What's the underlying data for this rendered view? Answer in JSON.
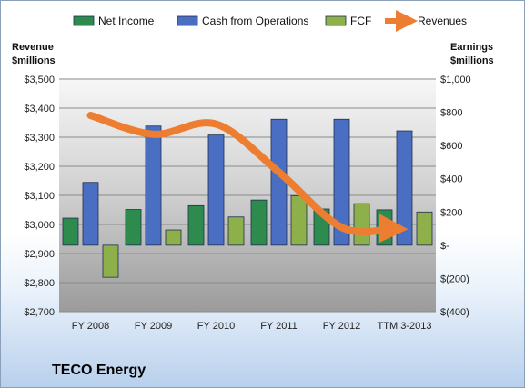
{
  "company_name": "TECO Energy",
  "chart_data": {
    "type": "bar",
    "categories": [
      "FY 2008",
      "FY 2009",
      "FY 2010",
      "FY 2011",
      "FY 2012",
      "TTM 3-2013"
    ],
    "left_axis": {
      "label_lines": [
        "Revenue",
        "$millions"
      ],
      "range": [
        2700,
        3500
      ],
      "ticks": [
        "$3,500",
        "$3,400",
        "$3,300",
        "$3,200",
        "$3,100",
        "$3,000",
        "$2,900",
        "$2,800",
        "$2,700"
      ]
    },
    "right_axis": {
      "label_lines": [
        "Earnings",
        "$millions"
      ],
      "range": [
        -400,
        1000
      ],
      "ticks": [
        "$1,000",
        "$800",
        "$600",
        "$400",
        "$200",
        "$-",
        "$(200)",
        "$(400)"
      ]
    },
    "series": [
      {
        "name": "Net Income",
        "axis": "right",
        "type": "bar",
        "color": "#2e8b4e",
        "values": [
          163,
          215,
          238,
          272,
          218,
          213
        ]
      },
      {
        "name": "Cash from Operations",
        "axis": "right",
        "type": "bar",
        "color": "#4a6fc2",
        "values": [
          378,
          717,
          663,
          758,
          758,
          688
        ]
      },
      {
        "name": "FCF",
        "axis": "right",
        "type": "bar",
        "color": "#8db04a",
        "values": [
          -193,
          92,
          170,
          298,
          250,
          200
        ]
      },
      {
        "name": "Revenues",
        "axis": "left",
        "type": "line",
        "color": "#ed7d31",
        "values": [
          3375,
          3310,
          3345,
          3180,
          2990,
          2985
        ]
      }
    ],
    "grid": true,
    "legend": "top"
  }
}
